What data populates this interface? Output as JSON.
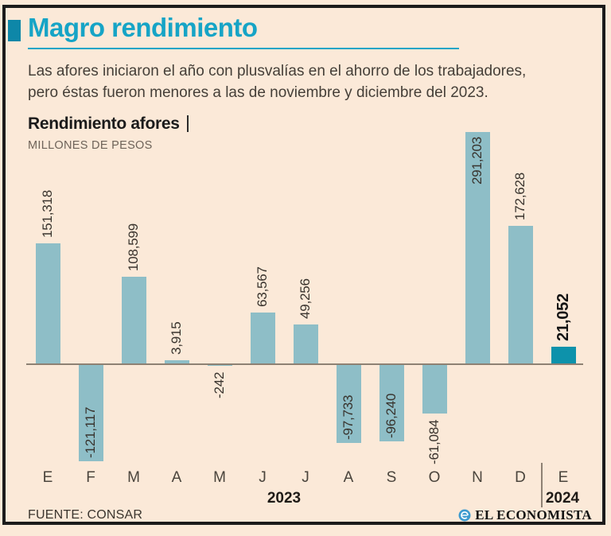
{
  "header": {
    "title": "Magro rendimiento",
    "subtitle_lines": [
      "Las afores iniciaron el año con plusvalías en el ahorro de los trabajadores,",
      "pero éstas fueron menores a las de noviembre y diciembre del 2023."
    ]
  },
  "chart_header": {
    "title": "Rendimiento afores",
    "unit": "MILLONES DE PESOS"
  },
  "chart_data": {
    "type": "bar",
    "title": "Rendimiento afores",
    "ylabel": "Millones de pesos",
    "categories": [
      "E",
      "F",
      "M",
      "A",
      "M",
      "J",
      "J",
      "A",
      "S",
      "O",
      "N",
      "D",
      "E"
    ],
    "values": [
      151318,
      -121117,
      108599,
      3915,
      -242,
      63567,
      49256,
      -97733,
      -96240,
      -61084,
      291203,
      172628,
      21052
    ],
    "labels": [
      "151,318",
      "-121,117",
      "108,599",
      "3,915",
      "-242",
      "63,567",
      "49,256",
      "-97,733",
      "-96,240",
      "-61,084",
      "291,203",
      "172,628",
      "21,052"
    ],
    "label_placement": [
      "above",
      "inside",
      "above",
      "above",
      "below",
      "above",
      "above",
      "inside",
      "inside",
      "below",
      "inside",
      "above",
      "above"
    ],
    "highlight_index": 12,
    "bar_color": "#8ebec7",
    "highlight_color": "#0d92ab",
    "year_groups": [
      {
        "label": "2023"
      },
      {
        "label": "2024"
      }
    ],
    "baseline_value": 0,
    "grid": false,
    "legend": false
  },
  "footer": {
    "source": "FUENTE: CONSAR",
    "brand": "EL ECONOMISTA",
    "brand_icon": "el-economista-logo"
  },
  "colors": {
    "background": "#fbe9d8",
    "accent": "#16a4c6",
    "bar": "#8ebec7",
    "bar_highlight": "#0d92ab",
    "baseline": "#8e8173",
    "frame": "#1b1b1b"
  }
}
